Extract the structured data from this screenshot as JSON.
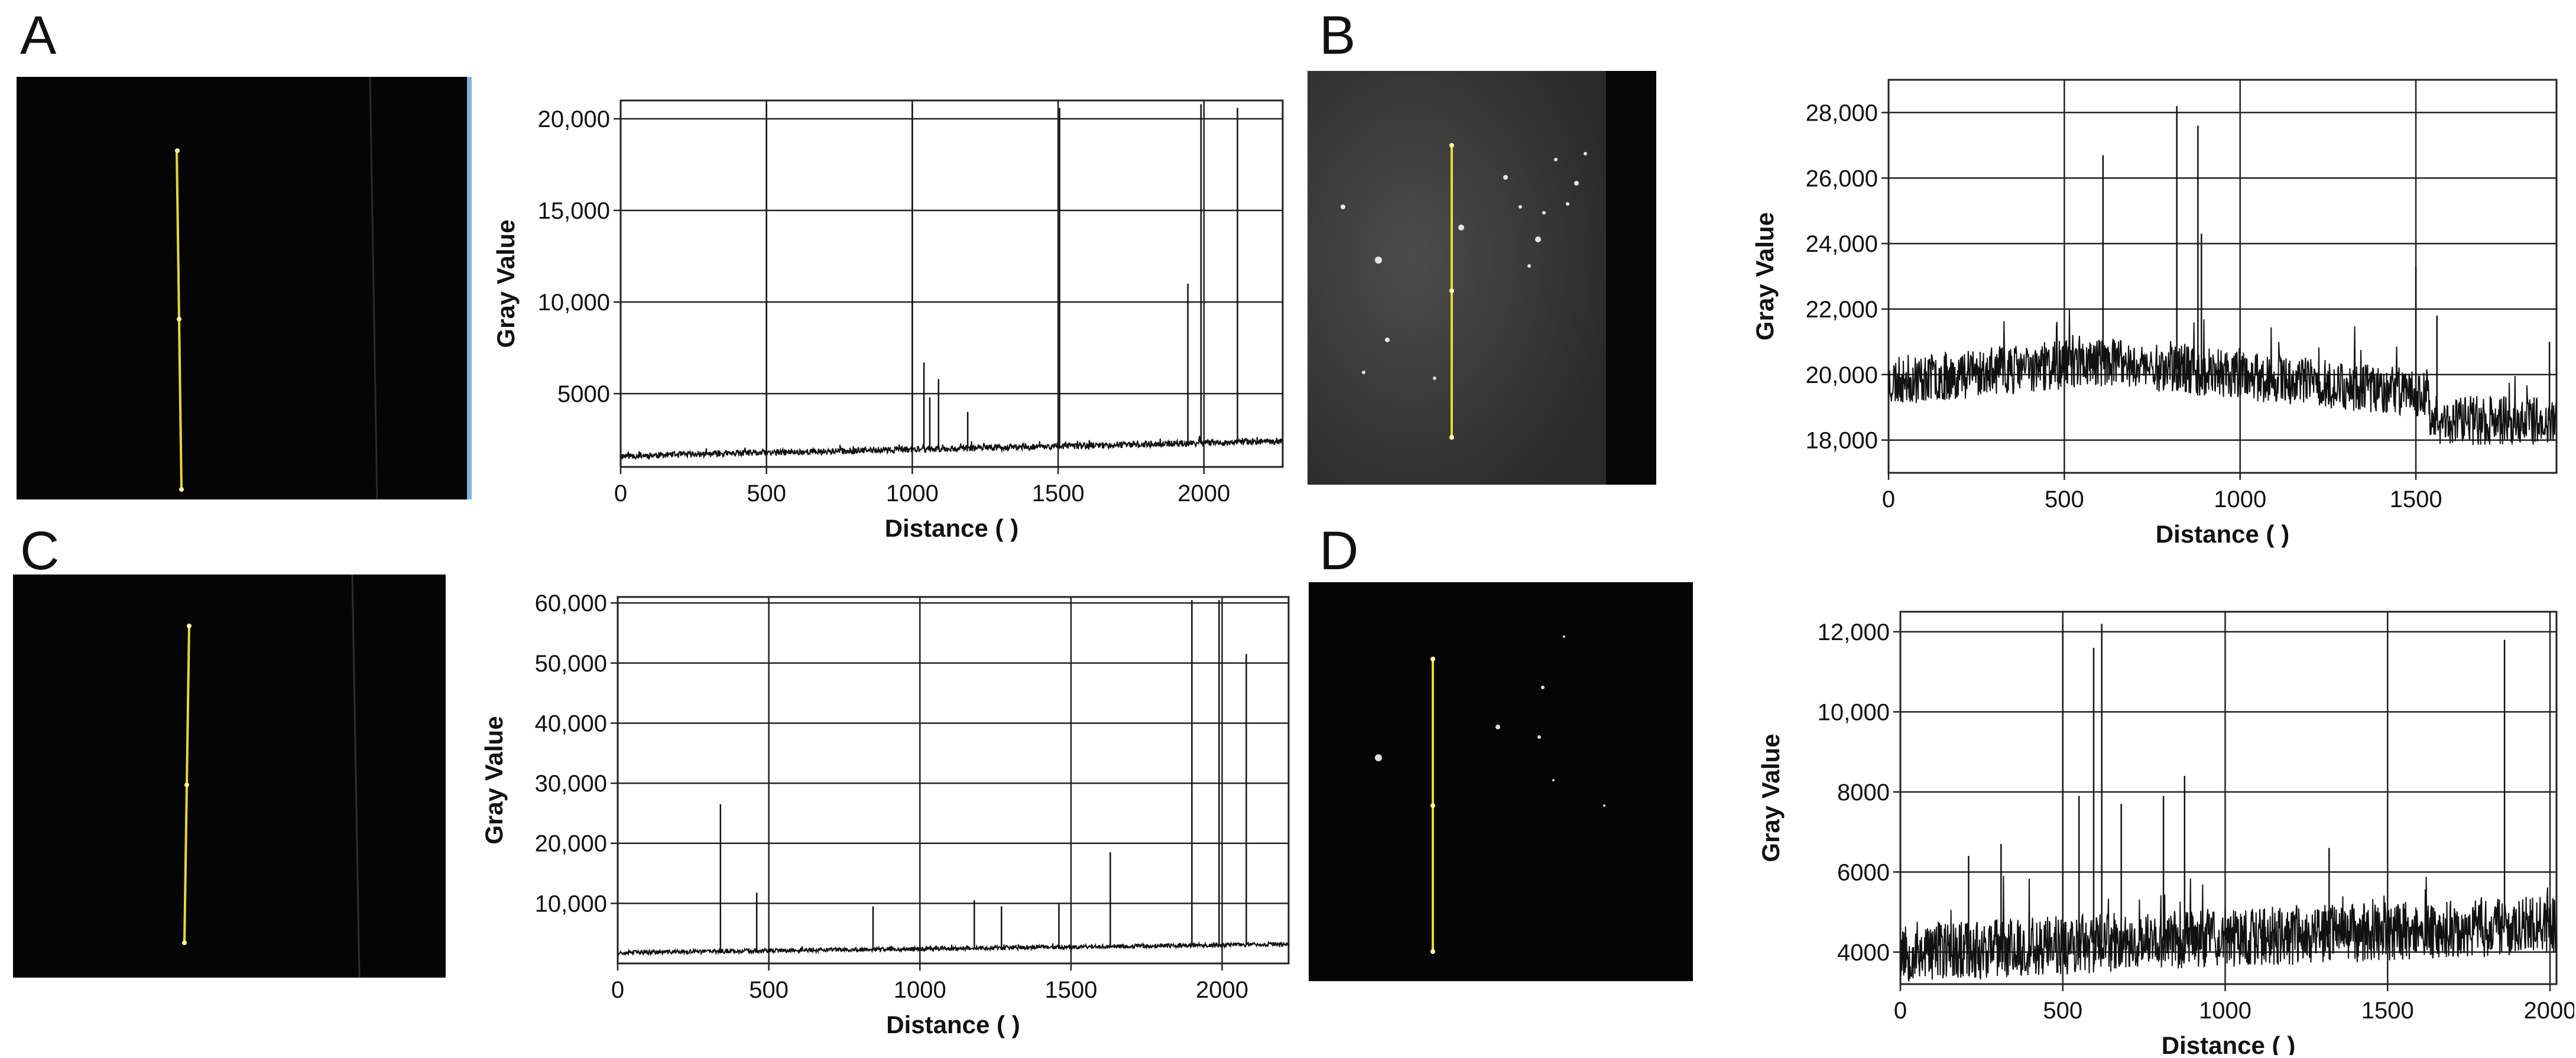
{
  "panels": [
    {
      "letter": "A"
    },
    {
      "letter": "B"
    },
    {
      "letter": "C"
    },
    {
      "letter": "D"
    }
  ],
  "chart_data": [
    {
      "panel": "A",
      "type": "line",
      "xlabel": "Distance ( )",
      "ylabel": "Gray  Value",
      "xlim": [
        0,
        2270
      ],
      "ylim": [
        1000,
        21000
      ],
      "xticks": [
        0,
        500,
        1000,
        1500,
        2000
      ],
      "xtick_labels": [
        "0",
        "500",
        "1000",
        "1500",
        "2000"
      ],
      "yticks": [
        5000,
        10000,
        15000,
        20000
      ],
      "ytick_labels": [
        "5000",
        "10,000",
        "15,000",
        "20,000"
      ],
      "grid": true,
      "baseline": {
        "start": 1600,
        "end": 2400,
        "noise": 350
      },
      "spikes": [
        [
          500,
          20800
        ],
        [
          1000,
          20800
        ],
        [
          1040,
          6700
        ],
        [
          1060,
          4800
        ],
        [
          1090,
          5800
        ],
        [
          1190,
          4000
        ],
        [
          1505,
          20600
        ],
        [
          1945,
          11000
        ],
        [
          1990,
          20800
        ],
        [
          2115,
          20600
        ]
      ]
    },
    {
      "panel": "B",
      "type": "line",
      "xlabel": "Distance ( )",
      "ylabel": "Gray  Value",
      "xlim": [
        0,
        1900
      ],
      "ylim": [
        17000,
        29000
      ],
      "xticks": [
        0,
        500,
        1000,
        1500
      ],
      "xtick_labels": [
        "0",
        "500",
        "1000",
        "1500"
      ],
      "yticks": [
        18000,
        20000,
        22000,
        24000,
        26000,
        28000
      ],
      "ytick_labels": [
        "18,000",
        "20,000",
        "22,000",
        "24,000",
        "26,000",
        "28,000"
      ],
      "grid": true,
      "baseline": {
        "start": 19800,
        "mid": 20400,
        "end": 18600,
        "noise": 1500
      },
      "spikes": [
        [
          610,
          26700
        ],
        [
          820,
          28200
        ],
        [
          880,
          27600
        ],
        [
          890,
          24300
        ],
        [
          1500,
          23300
        ],
        [
          1560,
          21800
        ],
        [
          1880,
          21000
        ]
      ]
    },
    {
      "panel": "C",
      "type": "line",
      "xlabel": "Distance ( )",
      "ylabel": "Gray  Value",
      "xlim": [
        0,
        2220
      ],
      "ylim": [
        0,
        61000
      ],
      "xticks": [
        0,
        500,
        1000,
        1500,
        2000
      ],
      "xtick_labels": [
        "0",
        "500",
        "1000",
        "1500",
        "2000"
      ],
      "yticks": [
        10000,
        20000,
        30000,
        40000,
        50000,
        60000
      ],
      "ytick_labels": [
        "10,000",
        "20,000",
        "30,000",
        "40,000",
        "50,000",
        "60,000"
      ],
      "grid": true,
      "baseline": {
        "start": 1800,
        "end": 3200,
        "noise": 700
      },
      "spikes": [
        [
          340,
          26500
        ],
        [
          460,
          11800
        ],
        [
          845,
          9500
        ],
        [
          1180,
          10500
        ],
        [
          1270,
          9500
        ],
        [
          1460,
          10000
        ],
        [
          1630,
          18500
        ],
        [
          1900,
          60500
        ],
        [
          1990,
          60500
        ],
        [
          2080,
          51500
        ]
      ]
    },
    {
      "panel": "D",
      "type": "line",
      "xlabel": "Distance ( )",
      "ylabel": "Gray  Value",
      "xlim": [
        0,
        2020
      ],
      "ylim": [
        3200,
        12500
      ],
      "xticks": [
        0,
        500,
        1000,
        1500,
        2000
      ],
      "xtick_labels": [
        "0",
        "500",
        "1000",
        "1500",
        "2000"
      ],
      "yticks": [
        4000,
        6000,
        8000,
        10000,
        12000
      ],
      "ytick_labels": [
        "4000",
        "6000",
        "8000",
        "10,000",
        "12,000"
      ],
      "grid": true,
      "baseline": {
        "start": 4000,
        "end": 4700,
        "noise": 1500
      },
      "spikes": [
        [
          210,
          6400
        ],
        [
          310,
          6700
        ],
        [
          500,
          12200
        ],
        [
          550,
          7900
        ],
        [
          595,
          11600
        ],
        [
          620,
          12200
        ],
        [
          680,
          7700
        ],
        [
          810,
          7900
        ],
        [
          875,
          8400
        ],
        [
          1320,
          6600
        ],
        [
          1860,
          11800
        ]
      ]
    }
  ]
}
